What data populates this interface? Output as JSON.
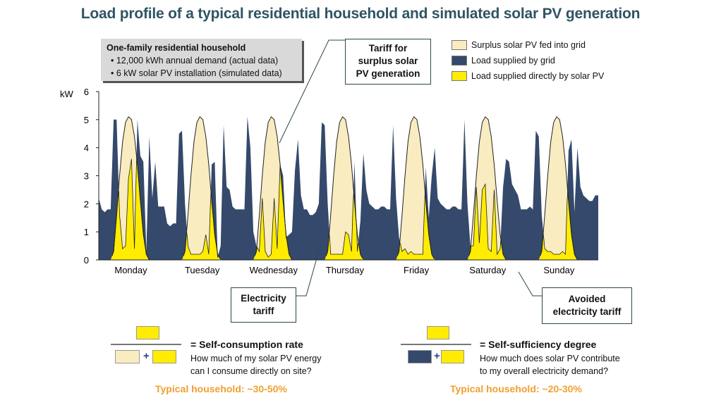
{
  "title": "Load profile of a typical residential household and simulated solar PV generation",
  "info_box": {
    "heading": "One-family residential household",
    "bullets": [
      "12,000 kWh annual demand (actual data)",
      "6 kW solar PV installation (simulated data)"
    ]
  },
  "callouts": {
    "tariff_surplus": [
      "Tariff for",
      "surplus solar",
      "PV generation"
    ],
    "electricity_tariff": [
      "Electricity",
      "tariff"
    ],
    "avoided_tariff": [
      "Avoided",
      "electricity tariff"
    ]
  },
  "colors": {
    "surplus": "#f8ecc0",
    "grid": "#34496b",
    "direct": "#ffec00",
    "title": "#2f5464",
    "highlight": "#f0a030"
  },
  "legend": [
    {
      "label": "Surplus solar PV fed into grid",
      "color": "#f8ecc0"
    },
    {
      "label": "Load supplied by grid",
      "color": "#34496b"
    },
    {
      "label": "Load supplied directly by solar PV",
      "color": "#ffec00"
    }
  ],
  "chart_data": {
    "type": "area",
    "ylabel": "kW",
    "ylim": [
      0,
      6
    ],
    "yticks": [
      "0",
      "1",
      "2",
      "3",
      "4",
      "5",
      "6"
    ],
    "categories": [
      "Monday",
      "Tuesday",
      "Wednesday",
      "Thursday",
      "Friday",
      "Saturday",
      "Sunday"
    ],
    "pv_generation_kw_hourly": [
      0,
      0,
      0,
      0,
      0,
      0.3,
      1.6,
      3.0,
      4.2,
      4.9,
      5.1,
      5.0,
      4.4,
      3.4,
      2.1,
      0.9,
      0.2,
      0,
      0,
      0,
      0,
      0,
      0,
      0
    ],
    "load_kw_hourly": [
      [
        2.2,
        1.8,
        1.7,
        1.8,
        1.8,
        5.0,
        5.0,
        1.6,
        0.4,
        0.5,
        2.9,
        3.6,
        0.4,
        5.0,
        3.7,
        3.5,
        0.3,
        4.4,
        2.2,
        3.5,
        1.9,
        1.9,
        1.9,
        1.3
      ],
      [
        1.2,
        1.3,
        1.3,
        4.5,
        4.6,
        2.0,
        0.5,
        0.2,
        0.2,
        0.2,
        0.2,
        0.3,
        0.9,
        0.2,
        3.4,
        3.5,
        0.1,
        0.5,
        4.8,
        2.6,
        2.5,
        1.9,
        1.8,
        1.8
      ],
      [
        1.8,
        1.8,
        5.1,
        4.0,
        1.0,
        0.5,
        0.3,
        2.2,
        0.3,
        0.1,
        0.2,
        2.2,
        0.4,
        3.4,
        3.0,
        0.8,
        0.9,
        1.0,
        3.2,
        4.3,
        2.3,
        1.8,
        1.8,
        1.6
      ],
      [
        1.6,
        1.7,
        2.0,
        4.9,
        4.8,
        2.0,
        0.2,
        0.2,
        0.2,
        0.2,
        0.2,
        1.0,
        0.9,
        0.3,
        3.5,
        0.3,
        1.4,
        3.8,
        2.5,
        2.0,
        1.9,
        1.8,
        1.8,
        1.9
      ],
      [
        1.9,
        1.8,
        1.8,
        4.8,
        2.2,
        0.8,
        0.3,
        0.4,
        0.2,
        0.3,
        0.2,
        0.2,
        0.2,
        0.2,
        3.3,
        1.5,
        3.0,
        4.0,
        2.2,
        2.0,
        1.9,
        1.8,
        1.8,
        1.9
      ],
      [
        1.9,
        1.8,
        1.8,
        5.0,
        2.0,
        0.5,
        0.5,
        2.6,
        0.6,
        2.5,
        2.7,
        0.4,
        0.3,
        2.5,
        0.2,
        0.4,
        2.6,
        3.6,
        3.5,
        2.7,
        2.5,
        2.3,
        1.8,
        1.8
      ],
      [
        1.8,
        1.9,
        1.8,
        4.6,
        4.4,
        1.6,
        0.4,
        0.3,
        0.3,
        0.2,
        0.2,
        0.2,
        0.3,
        0.2,
        3.9,
        4.3,
        1.7,
        4.0,
        2.6,
        2.3,
        2.2,
        2.1,
        2.1,
        2.3
      ]
    ],
    "grid": false
  },
  "formulas": {
    "self_consumption": {
      "title": "= Self-consumption rate",
      "lines": [
        "How much of my solar PV energy",
        "can I consume directly on site?"
      ],
      "plus": "+",
      "typical": "Typical household: ~30-50%"
    },
    "self_sufficiency": {
      "title": "= Self-sufficiency degree",
      "lines": [
        "How much does solar PV contribute",
        "to my overall electricity demand?"
      ],
      "plus": "+",
      "typical": "Typical household: ~20-30%"
    }
  }
}
